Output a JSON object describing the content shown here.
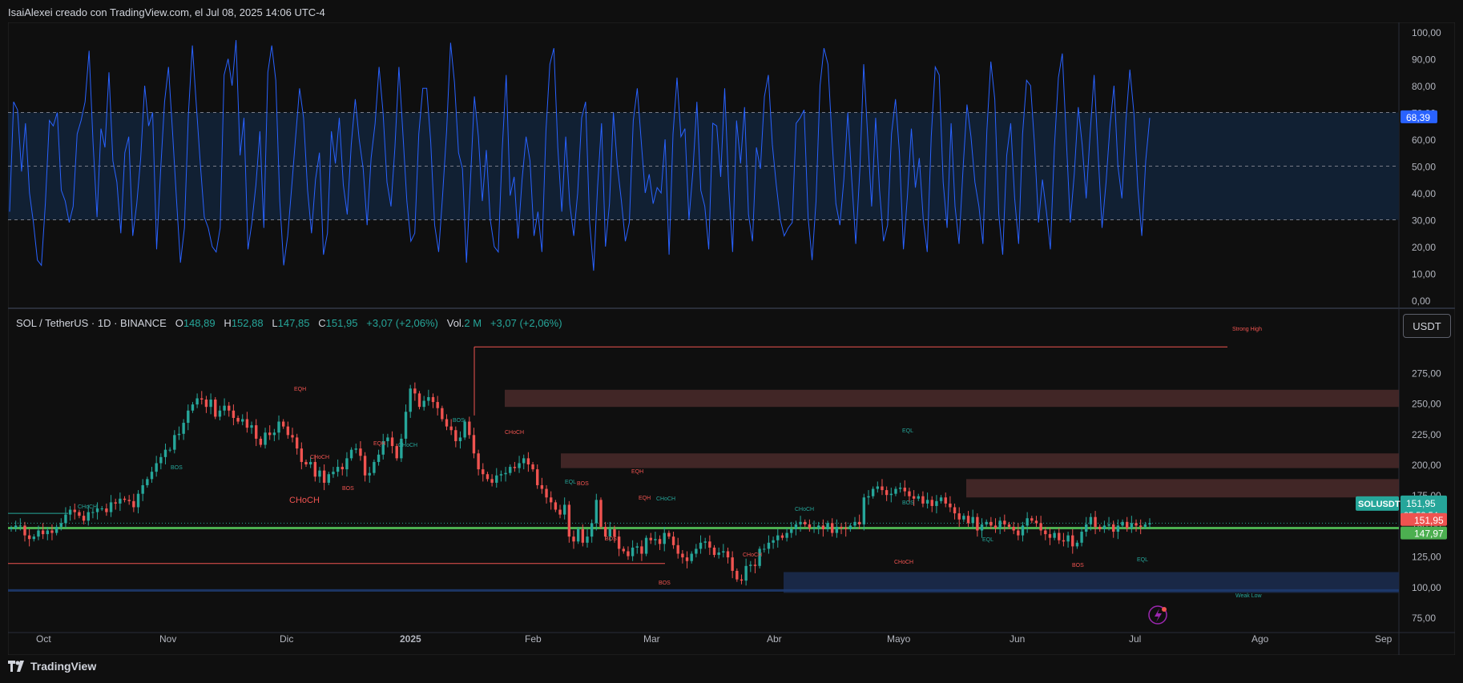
{
  "header": {
    "title": "IsaiAlexei creado con TradingView.com, el Jul 08, 2025 14:06 UTC-4"
  },
  "legend": {
    "symbol": "SOL / TetherUS · 1D · BINANCE",
    "o_label": "O",
    "o": "148,89",
    "h_label": "H",
    "h": "152,88",
    "l_label": "L",
    "l": "147,85",
    "c_label": "C",
    "c": "151,95",
    "change": "+3,07 (+2,06%)",
    "vol_label": "Vol.",
    "vol": "2 M",
    "vol_change": "+3,07 (+2,06%)"
  },
  "currency_button": "USDT",
  "footer": {
    "brand": "TradingView"
  },
  "colors": {
    "up": "#26a69a",
    "down": "#ef5350",
    "rsi": "#2962ff",
    "supply": "#4a2a2a",
    "demand": "#1a2a4a",
    "ema": "#4caf50"
  },
  "chart_data": [
    {
      "type": "line",
      "title": "",
      "ylim": [
        0,
        100
      ],
      "y_ticks": [
        "100,00",
        "90,00",
        "80,00",
        "70,00",
        "60,00",
        "50,00",
        "40,00",
        "30,00",
        "20,00",
        "10,00",
        "0,00"
      ],
      "bands": {
        "upper": 70,
        "middle": 50,
        "lower": 30
      },
      "last_value_label": "68,39",
      "last_value": 68.39,
      "series": [
        {
          "values": [
            33,
            74,
            71,
            48,
            66,
            40,
            29,
            15,
            13,
            36,
            67,
            65,
            70,
            41,
            37,
            29,
            35,
            62,
            67,
            74,
            93,
            59,
            31,
            64,
            57,
            85,
            52,
            44,
            25,
            55,
            61,
            24,
            36,
            53,
            80,
            65,
            70,
            19,
            48,
            74,
            87,
            63,
            38,
            14,
            27,
            69,
            95,
            73,
            51,
            31,
            27,
            20,
            18,
            27,
            84,
            90,
            80,
            97,
            54,
            68,
            19,
            29,
            43,
            63,
            27,
            85,
            95,
            82,
            37,
            13,
            24,
            42,
            61,
            79,
            68,
            41,
            25,
            45,
            55,
            17,
            25,
            63,
            51,
            68,
            43,
            32,
            58,
            75,
            60,
            49,
            28,
            53,
            66,
            87,
            70,
            44,
            35,
            57,
            87,
            62,
            37,
            22,
            25,
            62,
            79,
            79,
            59,
            28,
            18,
            39,
            63,
            96,
            81,
            55,
            49,
            14,
            44,
            76,
            61,
            37,
            56,
            30,
            20,
            18,
            56,
            84,
            39,
            46,
            23,
            45,
            61,
            52,
            24,
            33,
            18,
            63,
            88,
            94,
            57,
            33,
            61,
            36,
            24,
            40,
            68,
            74,
            29,
            11,
            42,
            66,
            20,
            36,
            70,
            50,
            37,
            22,
            29,
            67,
            79,
            59,
            40,
            47,
            36,
            42,
            40,
            60,
            17,
            62,
            83,
            61,
            64,
            30,
            48,
            74,
            41,
            35,
            19,
            66,
            65,
            46,
            79,
            43,
            18,
            67,
            51,
            72,
            32,
            22,
            57,
            49,
            76,
            84,
            58,
            43,
            30,
            24,
            27,
            29,
            66,
            68,
            71,
            31,
            15,
            37,
            80,
            94,
            88,
            61,
            36,
            28,
            45,
            70,
            45,
            21,
            48,
            88,
            61,
            35,
            68,
            41,
            22,
            28,
            62,
            75,
            55,
            19,
            39,
            64,
            42,
            53,
            30,
            18,
            61,
            87,
            84,
            44,
            27,
            66,
            35,
            21,
            49,
            73,
            61,
            44,
            35,
            21,
            63,
            89,
            75,
            32,
            17,
            54,
            66,
            38,
            21,
            62,
            82,
            80,
            58,
            29,
            45,
            33,
            19,
            57,
            83,
            92,
            60,
            29,
            47,
            72,
            58,
            38,
            62,
            84,
            55,
            27,
            44,
            65,
            80,
            50,
            38,
            67,
            86,
            70,
            42,
            24,
            52,
            68
          ]
        }
      ]
    },
    {
      "type": "candlestick",
      "title": "",
      "ylim": [
        62,
        302
      ],
      "y_ticks": [
        "275,00",
        "250,00",
        "225,00",
        "200,00",
        "175,00",
        "150,00",
        "125,00",
        "100,00",
        "75,00"
      ],
      "x_ticks": [
        "Oct",
        "Nov",
        "Dic",
        "2025",
        "Feb",
        "Mar",
        "Abr",
        "Mayo",
        "Jun",
        "Jul",
        "Ago",
        "Sep"
      ],
      "price_labels": {
        "symbol_tag": "SOLUSDT",
        "last": "151,95",
        "countdown": "05:53:54",
        "red": "151,95",
        "green": "147,97"
      },
      "ema_level": 147.97,
      "close": [
        148,
        150,
        150,
        142,
        139,
        141,
        146,
        143,
        146,
        144,
        149,
        152,
        159,
        163,
        161,
        158,
        154,
        161,
        161,
        164,
        164,
        161,
        169,
        168,
        172,
        171,
        170,
        165,
        176,
        183,
        188,
        194,
        201,
        206,
        212,
        212,
        224,
        225,
        234,
        244,
        249,
        254,
        253,
        247,
        253,
        239,
        244,
        248,
        244,
        238,
        235,
        237,
        230,
        232,
        221,
        216,
        226,
        224,
        226,
        235,
        231,
        224,
        222,
        213,
        202,
        200,
        202,
        190,
        195,
        185,
        192,
        194,
        198,
        196,
        205,
        212,
        213,
        207,
        191,
        193,
        202,
        208,
        219,
        222,
        215,
        205,
        221,
        243,
        262,
        258,
        247,
        252,
        255,
        251,
        246,
        237,
        231,
        228,
        219,
        222,
        235,
        224,
        209,
        196,
        192,
        188,
        185,
        191,
        192,
        193,
        198,
        197,
        201,
        205,
        200,
        196,
        183,
        180,
        173,
        169,
        163,
        159,
        167,
        141,
        137,
        147,
        136,
        141,
        152,
        171,
        149,
        141,
        147,
        141,
        131,
        129,
        125,
        132,
        133,
        127,
        140,
        138,
        139,
        135,
        144,
        141,
        134,
        127,
        124,
        121,
        127,
        131,
        136,
        137,
        132,
        126,
        128,
        129,
        124,
        113,
        106,
        105,
        117,
        118,
        117,
        131,
        131,
        136,
        138,
        142,
        140,
        144,
        147,
        151,
        153,
        151,
        148,
        148,
        150,
        147,
        152,
        144,
        149,
        148,
        147,
        150,
        153,
        151,
        173,
        174,
        180,
        182,
        179,
        175,
        176,
        180,
        181,
        178,
        174,
        172,
        174,
        168,
        171,
        166,
        170,
        173,
        168,
        165,
        160,
        155,
        158,
        152,
        157,
        146,
        151,
        153,
        150,
        148,
        154,
        151,
        149,
        146,
        142,
        150,
        156,
        154,
        152,
        146,
        143,
        140,
        144,
        138,
        137,
        142,
        133,
        136,
        145,
        151,
        157,
        149,
        147,
        150,
        151,
        145,
        150,
        153,
        148,
        152,
        150,
        149,
        151,
        152
      ],
      "annotations": [
        {
          "text": "Strong High",
          "kind": "red"
        },
        {
          "text": "EQH",
          "kind": "red"
        },
        {
          "text": "CHoCH",
          "kind": "teal"
        },
        {
          "text": "BOS",
          "kind": "teal"
        },
        {
          "text": "CHoCH",
          "kind": "red"
        },
        {
          "text": "BOS",
          "kind": "red"
        },
        {
          "text": "EQH",
          "kind": "red"
        },
        {
          "text": "CHoCH",
          "kind": "teal"
        },
        {
          "text": "BOS",
          "kind": "teal"
        },
        {
          "text": "CHoCH",
          "kind": "red"
        },
        {
          "text": "BOS",
          "kind": "red"
        },
        {
          "text": "EQL",
          "kind": "teal"
        },
        {
          "text": "EQH",
          "kind": "red"
        },
        {
          "text": "BOS",
          "kind": "red"
        },
        {
          "text": "EQH",
          "kind": "red"
        },
        {
          "text": "CHoCH",
          "kind": "teal"
        },
        {
          "text": "BOS",
          "kind": "red"
        },
        {
          "text": "CHoCH",
          "kind": "red"
        },
        {
          "text": "CHoCH",
          "kind": "red"
        },
        {
          "text": "CHoCH",
          "kind": "teal"
        },
        {
          "text": "BOS",
          "kind": "teal"
        },
        {
          "text": "EQL",
          "kind": "teal"
        },
        {
          "text": "CHoCH",
          "kind": "red"
        },
        {
          "text": "EQL",
          "kind": "teal"
        },
        {
          "text": "BOS",
          "kind": "red"
        },
        {
          "text": "EQL",
          "kind": "teal"
        },
        {
          "text": "Weak Low",
          "kind": "teal"
        }
      ]
    }
  ]
}
